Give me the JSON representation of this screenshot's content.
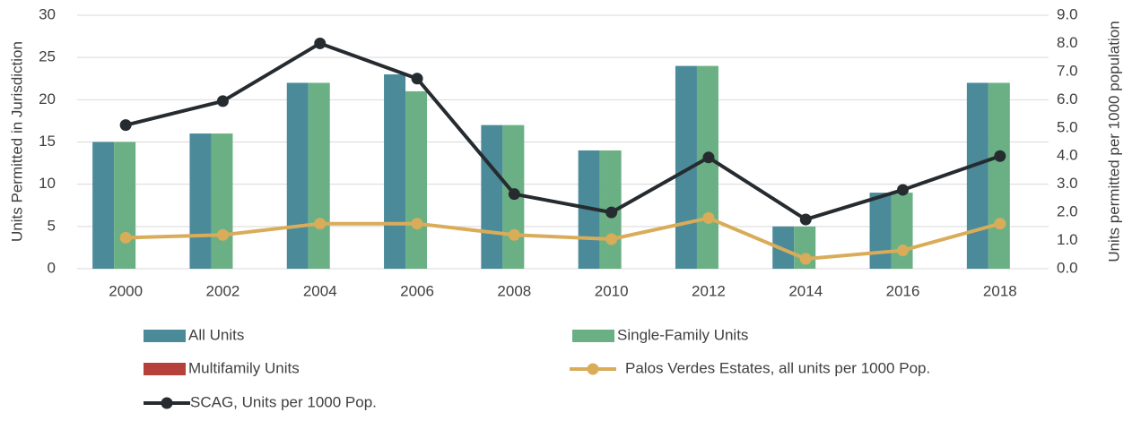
{
  "chart_data": {
    "type": "bar",
    "y_label": "Units Permitted in Jurisdiction",
    "y2_label": "Units permitted per 1000 population",
    "categories": [
      "2000",
      "2002",
      "2004",
      "2006",
      "2008",
      "2010",
      "2012",
      "2014",
      "2016",
      "2018"
    ],
    "ylim": [
      0,
      30
    ],
    "yticks": [
      0,
      5,
      10,
      15,
      20,
      25,
      30
    ],
    "y2lim": [
      0,
      9
    ],
    "y2ticks": [
      {
        "value": 0,
        "label": "0.0"
      },
      {
        "value": 1,
        "label": "1.0"
      },
      {
        "value": 2,
        "label": "2.0"
      },
      {
        "value": 3,
        "label": "3.0"
      },
      {
        "value": 4,
        "label": "4.0"
      },
      {
        "value": 5,
        "label": "5.0"
      },
      {
        "value": 6,
        "label": "6.0"
      },
      {
        "value": 7,
        "label": "7.0"
      },
      {
        "value": 8,
        "label": "8.0"
      },
      {
        "value": 9,
        "label": "9.0"
      }
    ],
    "grid": true,
    "legend": "bottom",
    "series": [
      {
        "name": "All Units",
        "type": "bar",
        "color": "#4a8a99",
        "values": [
          15,
          16,
          22,
          23,
          17,
          14,
          24,
          5,
          9,
          22
        ]
      },
      {
        "name": "Single-Family Units",
        "type": "bar",
        "color": "#6bb085",
        "values": [
          15,
          16,
          22,
          21,
          17,
          14,
          24,
          5,
          9,
          22
        ]
      },
      {
        "name": "Multifamily Units",
        "type": "bar",
        "color": "#b5413a",
        "values": [
          0,
          0,
          0,
          0,
          0,
          0,
          0,
          0,
          0,
          0
        ]
      },
      {
        "name": "Palos Verdes Estates, all units per 1000 Pop.",
        "type": "line",
        "axis": "y2",
        "color": "#d9ac5a",
        "values": [
          1.1,
          1.2,
          1.6,
          1.6,
          1.2,
          1.05,
          1.8,
          0.35,
          0.65,
          1.6
        ]
      },
      {
        "name": "SCAG, Units per 1000 Pop.",
        "type": "line",
        "axis": "y2",
        "color": "#262b30",
        "values": [
          5.1,
          5.95,
          8.0,
          6.75,
          2.65,
          2.0,
          3.95,
          1.75,
          2.8,
          4.0
        ]
      }
    ]
  }
}
